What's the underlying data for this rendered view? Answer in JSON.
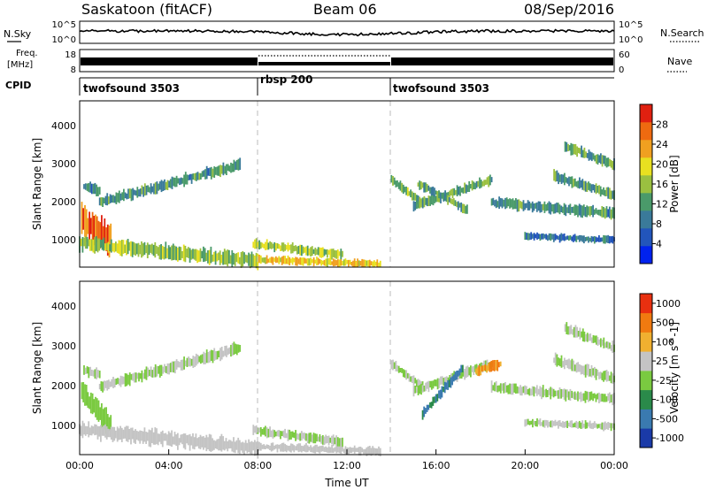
{
  "header": {
    "station": "Saskatoon (fitACF)",
    "beam": "Beam 06",
    "date": "08/Sep/2016"
  },
  "noise_panel": {
    "left_label": "N.Sky",
    "right_label": "N.Search",
    "left_ticks": [
      "10^5",
      "10^0"
    ],
    "right_ticks": [
      "10^5",
      "10^0"
    ]
  },
  "freq_panel": {
    "left_label_1": "Freq.",
    "left_label_2": "[MHz]",
    "right_label": "Nave",
    "left_ticks": [
      "18",
      "8"
    ],
    "right_ticks": [
      "60",
      "0"
    ]
  },
  "cpid_panel": {
    "label": "CPID",
    "segments": [
      {
        "name": "twofsound 3503",
        "start_hour": 0,
        "end_hour": 8
      },
      {
        "name": "rbsp 200",
        "start_hour": 8,
        "end_hour": 14
      },
      {
        "name": "twofsound 3503",
        "start_hour": 14,
        "end_hour": 24
      }
    ]
  },
  "chart_data": [
    {
      "type": "heatmap",
      "title": "",
      "ylabel": "Slant Range [km]",
      "xlabel": "",
      "xlim": [
        0,
        24
      ],
      "ylim": [
        180,
        4600
      ],
      "yticks": [
        "1000",
        "2000",
        "3000",
        "4000"
      ],
      "colorbar": {
        "label": "Power [dB]",
        "range": [
          0,
          32
        ],
        "ticks": [
          "4",
          "8",
          "12",
          "16",
          "20",
          "24",
          "28"
        ],
        "colors": [
          "#0022ee",
          "#2255bb",
          "#3a7a9a",
          "#4a9a6a",
          "#9ac040",
          "#e8e020",
          "#f0a020",
          "#ee6a10",
          "#e02010"
        ]
      },
      "echo_bands": [
        {
          "start": [
            0.2,
            2350
          ],
          "end": [
            0.9,
            2200
          ],
          "width": 220,
          "value": 10
        },
        {
          "start": [
            0.9,
            1900
          ],
          "end": [
            7.2,
            2900
          ],
          "width": 230,
          "value": 11
        },
        {
          "start": [
            0.1,
            1400
          ],
          "end": [
            1.4,
            900
          ],
          "width": 600,
          "value": 27
        },
        {
          "start": [
            0.0,
            820
          ],
          "end": [
            8.0,
            340
          ],
          "width": 300,
          "value": 16
        },
        {
          "start": [
            7.8,
            800
          ],
          "end": [
            11.8,
            500
          ],
          "width": 200,
          "value": 17
        },
        {
          "start": [
            8.0,
            380
          ],
          "end": [
            13.5,
            260
          ],
          "width": 160,
          "value": 21
        },
        {
          "start": [
            14.0,
            2500
          ],
          "end": [
            15.4,
            1900
          ],
          "width": 180,
          "value": 14
        },
        {
          "start": [
            15.0,
            1800
          ],
          "end": [
            18.5,
            2500
          ],
          "width": 200,
          "value": 13
        },
        {
          "start": [
            15.2,
            2400
          ],
          "end": [
            17.4,
            1700
          ],
          "width": 180,
          "value": 13
        },
        {
          "start": [
            18.5,
            1900
          ],
          "end": [
            24.0,
            1600
          ],
          "width": 220,
          "value": 11
        },
        {
          "start": [
            21.3,
            2600
          ],
          "end": [
            24.0,
            2100
          ],
          "width": 220,
          "value": 12
        },
        {
          "start": [
            21.8,
            3400
          ],
          "end": [
            24.0,
            2900
          ],
          "width": 220,
          "value": 13
        },
        {
          "start": [
            20.0,
            1000
          ],
          "end": [
            24.0,
            900
          ],
          "width": 150,
          "value": 8
        }
      ]
    },
    {
      "type": "heatmap",
      "title": "",
      "ylabel": "Slant Range [km]",
      "xlabel": "Time UT",
      "xlim": [
        0,
        24
      ],
      "ylim": [
        180,
        4600
      ],
      "yticks": [
        "1000",
        "2000",
        "3000",
        "4000"
      ],
      "xticks": [
        "00:00",
        "04:00",
        "08:00",
        "12:00",
        "16:00",
        "20:00",
        "00:00"
      ],
      "colorbar": {
        "label": "Velocity [m s^-1]",
        "range": [
          -1200,
          1200
        ],
        "ticks": [
          "1000",
          "500",
          "100",
          "25",
          "-25",
          "-100",
          "-500",
          "-1000"
        ],
        "colors": [
          "#1a3aa8",
          "#3a7ab0",
          "#2a8a4a",
          "#7aca40",
          "#c4c4c4",
          "#f0b030",
          "#f07a10",
          "#e83010"
        ]
      },
      "echo_bands": [
        {
          "start": [
            0.2,
            2350
          ],
          "end": [
            0.9,
            2200
          ],
          "width": 220,
          "value": 0
        },
        {
          "start": [
            0.9,
            1900
          ],
          "end": [
            7.2,
            2900
          ],
          "width": 230,
          "value": 0
        },
        {
          "start": [
            0.1,
            1800
          ],
          "end": [
            1.4,
            900
          ],
          "width": 500,
          "value": -150
        },
        {
          "start": [
            0.0,
            820
          ],
          "end": [
            8.0,
            340
          ],
          "width": 300,
          "value": 120
        },
        {
          "start": [
            7.8,
            800
          ],
          "end": [
            11.8,
            500
          ],
          "width": 200,
          "value": 0
        },
        {
          "start": [
            8.0,
            380
          ],
          "end": [
            13.5,
            260
          ],
          "width": 160,
          "value": 120
        },
        {
          "start": [
            14.0,
            2500
          ],
          "end": [
            15.4,
            1900
          ],
          "width": 180,
          "value": 0
        },
        {
          "start": [
            15.0,
            1800
          ],
          "end": [
            18.5,
            2500
          ],
          "width": 200,
          "value": 0
        },
        {
          "start": [
            15.4,
            1200
          ],
          "end": [
            17.2,
            2400
          ],
          "width": 200,
          "value": -700
        },
        {
          "start": [
            17.8,
            2300
          ],
          "end": [
            18.9,
            2500
          ],
          "width": 200,
          "value": 600
        },
        {
          "start": [
            18.5,
            1900
          ],
          "end": [
            24.0,
            1600
          ],
          "width": 220,
          "value": 0
        },
        {
          "start": [
            21.3,
            2600
          ],
          "end": [
            24.0,
            2100
          ],
          "width": 220,
          "value": 0
        },
        {
          "start": [
            21.8,
            3400
          ],
          "end": [
            24.0,
            2900
          ],
          "width": 220,
          "value": 0
        },
        {
          "start": [
            20.0,
            1000
          ],
          "end": [
            24.0,
            900
          ],
          "width": 150,
          "value": 0
        }
      ]
    }
  ]
}
